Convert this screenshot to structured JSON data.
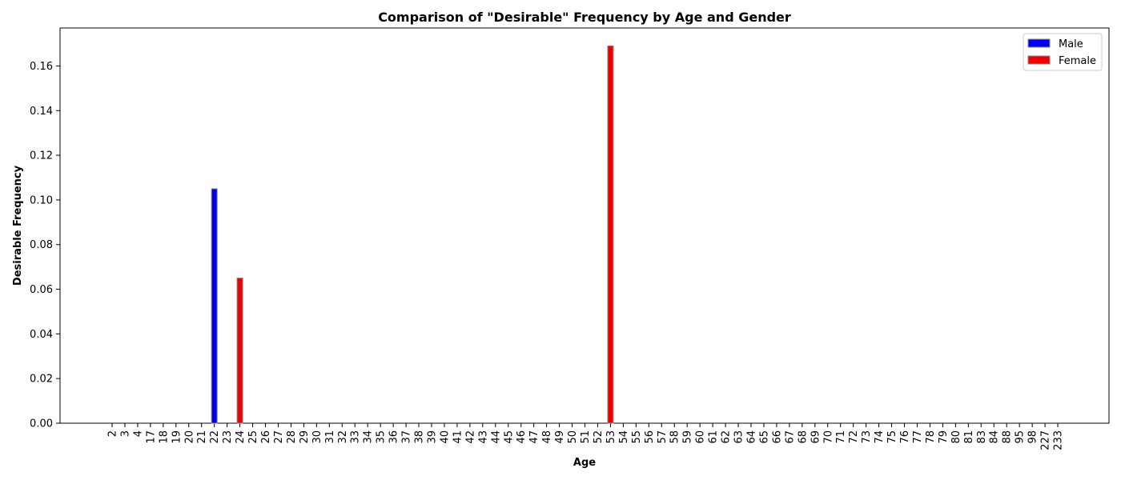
{
  "chart_data": {
    "type": "bar",
    "title": "Comparison of \"Desirable\" Frequency by Age and Gender",
    "xlabel": "Age",
    "ylabel": "Desirable Frequency",
    "ylim": [
      0,
      0.177
    ],
    "yticks": [
      "0.00",
      "0.02",
      "0.04",
      "0.06",
      "0.08",
      "0.10",
      "0.12",
      "0.14",
      "0.16"
    ],
    "categories": [
      "2",
      "3",
      "4",
      "17",
      "18",
      "19",
      "20",
      "21",
      "22",
      "23",
      "24",
      "25",
      "26",
      "27",
      "28",
      "29",
      "30",
      "31",
      "32",
      "33",
      "34",
      "35",
      "36",
      "37",
      "38",
      "39",
      "40",
      "41",
      "42",
      "43",
      "44",
      "45",
      "46",
      "47",
      "48",
      "49",
      "50",
      "51",
      "52",
      "53",
      "54",
      "55",
      "56",
      "57",
      "58",
      "59",
      "60",
      "61",
      "62",
      "63",
      "64",
      "65",
      "66",
      "67",
      "68",
      "69",
      "70",
      "71",
      "72",
      "73",
      "74",
      "75",
      "76",
      "77",
      "78",
      "79",
      "80",
      "81",
      "83",
      "84",
      "88",
      "95",
      "98",
      "227",
      "233"
    ],
    "series": [
      {
        "name": "Male",
        "color": "#0000ee",
        "values": [
          0,
          0,
          0,
          0,
          0,
          0,
          0,
          0,
          0.105,
          0,
          0,
          0,
          0,
          0,
          0,
          0,
          0,
          0,
          0,
          0,
          0,
          0,
          0,
          0,
          0,
          0,
          0,
          0,
          0,
          0,
          0,
          0,
          0,
          0,
          0,
          0,
          0,
          0,
          0,
          0,
          0,
          0,
          0,
          0,
          0,
          0,
          0,
          0,
          0,
          0,
          0,
          0,
          0,
          0,
          0,
          0,
          0,
          0,
          0,
          0,
          0,
          0,
          0,
          0,
          0,
          0,
          0,
          0,
          0,
          0,
          0,
          0,
          0,
          0,
          0
        ]
      },
      {
        "name": "Female",
        "color": "#ee0000",
        "values": [
          0,
          0,
          0,
          0,
          0,
          0,
          0,
          0,
          0,
          0,
          0.065,
          0,
          0,
          0,
          0,
          0,
          0,
          0,
          0,
          0,
          0,
          0,
          0,
          0,
          0,
          0,
          0,
          0,
          0,
          0,
          0,
          0,
          0,
          0,
          0,
          0,
          0,
          0,
          0,
          0.169,
          0,
          0,
          0,
          0,
          0,
          0,
          0,
          0,
          0,
          0,
          0,
          0,
          0,
          0,
          0,
          0,
          0,
          0,
          0,
          0,
          0,
          0,
          0,
          0,
          0,
          0,
          0,
          0,
          0,
          0,
          0,
          0,
          0,
          0,
          0
        ]
      }
    ],
    "legend_position": "top-right",
    "grid": false
  }
}
